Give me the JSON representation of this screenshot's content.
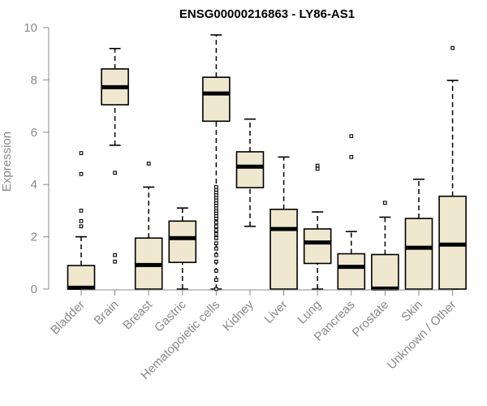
{
  "chart_data": {
    "type": "boxplot",
    "title": "ENSG00000216863 - LY86-AS1",
    "xlabel": "",
    "ylabel": "Expression",
    "ylim": [
      0,
      10
    ],
    "yticks": [
      0,
      2,
      4,
      6,
      8,
      10
    ],
    "grid": false,
    "box_fill": "#efe8cf",
    "box_stroke": "#000000",
    "categories": [
      "Bladder",
      "Brain",
      "Breast",
      "Gastric",
      "Hematopoietic cells",
      "Kidney",
      "Liver",
      "Lung",
      "Pancreas",
      "Prostate",
      "Skin",
      "Unknown / Other"
    ],
    "boxes": [
      {
        "category": "Bladder",
        "min": 0,
        "q1": 0,
        "median": 0.05,
        "q3": 0.9,
        "max": 2.0,
        "outliers": [
          2.4,
          2.6,
          3.0,
          4.4,
          5.2
        ]
      },
      {
        "category": "Brain",
        "min": 5.5,
        "q1": 7.05,
        "median": 7.72,
        "q3": 8.42,
        "max": 9.2,
        "outliers": [
          4.45,
          1.3,
          1.05
        ]
      },
      {
        "category": "Breast",
        "min": 0,
        "q1": 0,
        "median": 0.92,
        "q3": 1.95,
        "max": 3.9,
        "outliers": [
          4.8
        ]
      },
      {
        "category": "Gastric",
        "min": 0,
        "q1": 1.02,
        "median": 1.95,
        "q3": 2.6,
        "max": 3.1,
        "outliers": []
      },
      {
        "category": "Hematopoietic cells",
        "min": 0,
        "q1": 6.42,
        "median": 7.48,
        "q3": 8.1,
        "max": 9.72,
        "outliers": [
          0.0,
          0.35,
          0.7,
          1.05,
          1.3,
          1.55,
          1.75,
          1.95,
          2.1,
          2.25,
          2.4,
          2.55,
          2.7,
          2.8,
          2.9,
          3.0,
          3.1,
          3.2,
          3.3,
          3.4,
          3.5,
          3.6,
          3.7,
          3.8,
          3.9
        ]
      },
      {
        "category": "Kidney",
        "min": 2.4,
        "q1": 3.88,
        "median": 4.68,
        "q3": 5.25,
        "max": 6.5,
        "outliers": []
      },
      {
        "category": "Liver",
        "min": 0,
        "q1": 0,
        "median": 2.3,
        "q3": 3.05,
        "max": 5.05,
        "outliers": []
      },
      {
        "category": "Lung",
        "min": 0,
        "q1": 0.98,
        "median": 1.78,
        "q3": 2.3,
        "max": 2.95,
        "outliers": [
          4.6,
          4.72
        ]
      },
      {
        "category": "Pancreas",
        "min": 0,
        "q1": 0,
        "median": 0.85,
        "q3": 1.35,
        "max": 2.2,
        "outliers": [
          5.05,
          5.85
        ]
      },
      {
        "category": "Prostate",
        "min": 0,
        "q1": 0,
        "median": 0.02,
        "q3": 1.32,
        "max": 2.75,
        "outliers": [
          3.3
        ]
      },
      {
        "category": "Skin",
        "min": 0,
        "q1": 0,
        "median": 1.58,
        "q3": 2.7,
        "max": 4.2,
        "outliers": []
      },
      {
        "category": "Unknown / Other",
        "min": 0,
        "q1": 0,
        "median": 1.7,
        "q3": 3.55,
        "max": 7.98,
        "outliers": [
          9.22
        ]
      }
    ]
  }
}
